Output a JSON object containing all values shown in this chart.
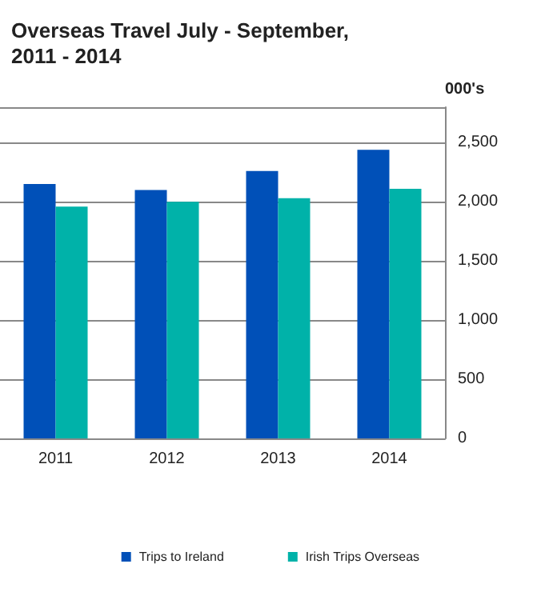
{
  "chart_data": {
    "type": "bar",
    "title": "Overseas Travel July - September,\n2011 - 2014",
    "ylabel": "000's",
    "categories": [
      "2011",
      "2012",
      "2013",
      "2014"
    ],
    "series": [
      {
        "name": "Trips to Ireland",
        "color": "#0050b8",
        "values": [
          2150,
          2100,
          2260,
          2440
        ]
      },
      {
        "name": "Irish Trips Overseas",
        "color": "#00b2a9",
        "values": [
          1960,
          2000,
          2030,
          2110
        ]
      }
    ],
    "ylim": [
      0,
      2800
    ],
    "yticks": [
      0,
      500,
      {
        "value": 1000,
        "label": "1,000"
      },
      {
        "value": 1500,
        "label": "1,500"
      },
      {
        "value": 2000,
        "label": "2,000"
      },
      {
        "value": 2500,
        "label": "2,500"
      }
    ],
    "grid": "y",
    "legend": "bottom"
  }
}
